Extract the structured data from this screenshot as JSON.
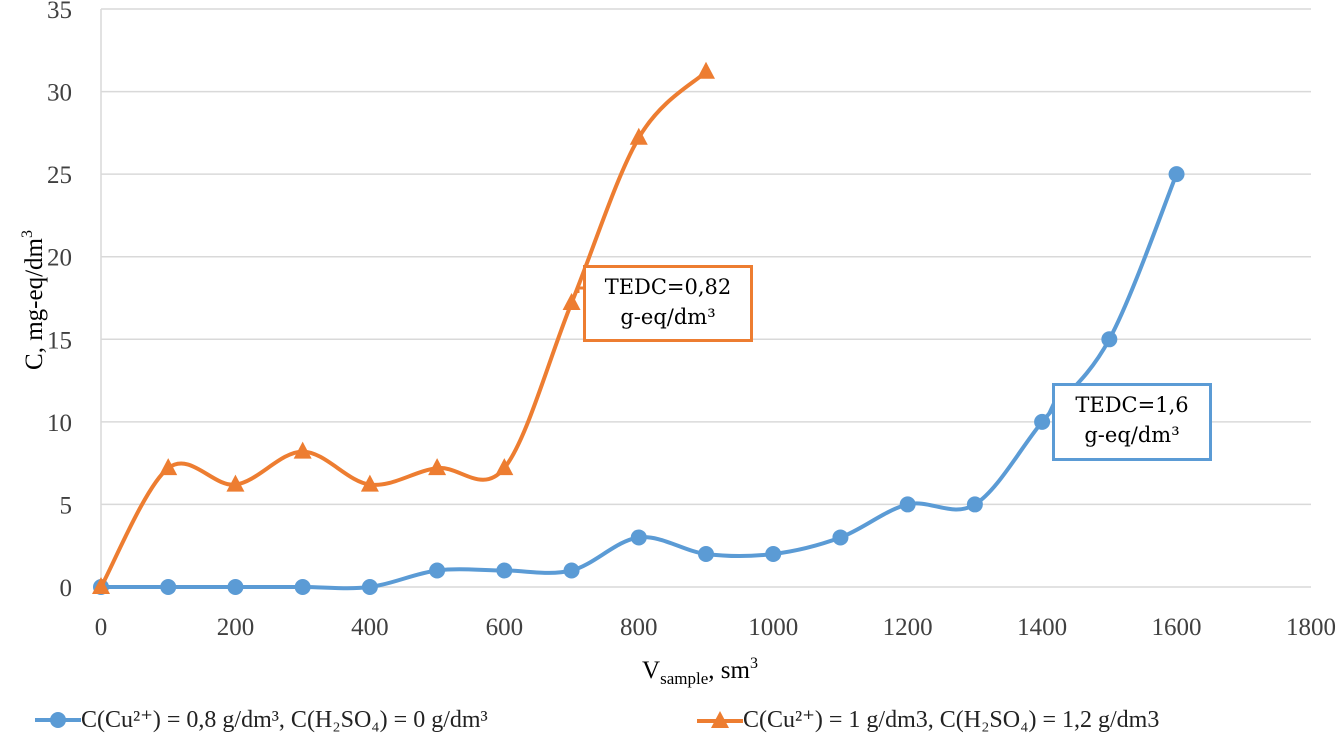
{
  "chart_data": {
    "type": "line",
    "title": "",
    "xlabel": "V",
    "xlabel_sub": "sample",
    "xlabel_unit": ", sm",
    "xlabel_sup": "3",
    "ylabel": "C, mg-eq/dm",
    "ylabel_sup": "3",
    "xlim": [
      0,
      1800
    ],
    "ylim": [
      0,
      35
    ],
    "xticks": [
      "0",
      "200",
      "400",
      "600",
      "800",
      "1000",
      "1200",
      "1400",
      "1600",
      "1800"
    ],
    "yticks": [
      "0",
      "5",
      "10",
      "15",
      "20",
      "25",
      "30",
      "35"
    ],
    "grid": "horizontal",
    "legend_position": "bottom",
    "series": [
      {
        "name": "C(Cu²⁺) = 0,8 g/dm³,  C(H₂SO₄) = 0 g/dm³",
        "color": "#5B9BD5",
        "marker": "circle",
        "x": [
          0,
          100,
          200,
          300,
          400,
          500,
          600,
          700,
          800,
          900,
          1000,
          1100,
          1200,
          1300,
          1400,
          1500,
          1600
        ],
        "y": [
          0,
          0,
          0,
          0,
          0,
          1,
          1,
          1,
          3,
          2,
          2,
          3,
          5,
          5,
          10,
          15,
          25
        ]
      },
      {
        "name": "C(Cu²⁺) = 1 g/dm3,  C(H₂SO₄) = 1,2 g/dm3",
        "color": "#ED7D31",
        "marker": "triangle",
        "x": [
          0,
          100,
          200,
          300,
          400,
          500,
          600,
          700,
          800,
          900
        ],
        "y": [
          0,
          7.2,
          6.2,
          8.2,
          6.2,
          7.2,
          7.2,
          17.2,
          27.2,
          31.2
        ]
      }
    ],
    "annotations": [
      {
        "line1": "TEDC=0,82",
        "line2": "g-eq/dm³",
        "color": "#ED7D31",
        "series": 1
      },
      {
        "line1": "TEDC=1,6",
        "line2": "g-eq/dm³",
        "color": "#5B9BD5",
        "series": 0
      }
    ]
  }
}
